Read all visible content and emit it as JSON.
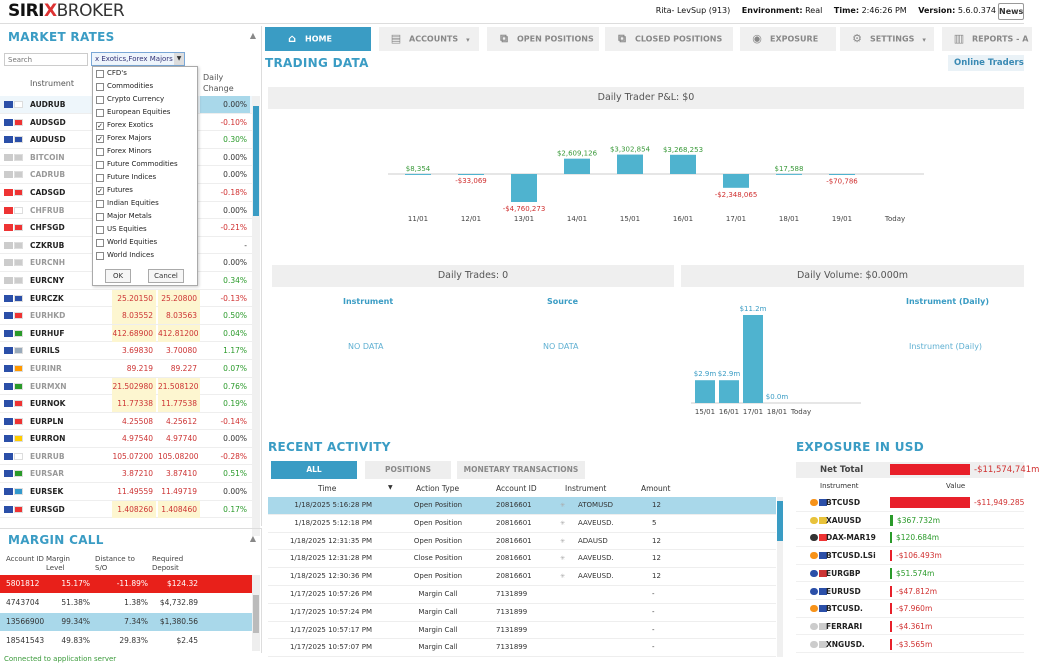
{
  "header": {
    "logo_a": "SIRI",
    "logo_x": "X",
    "logo_b": "BROKER",
    "user": "Rita- LevSup (913)",
    "env_label": "Environment:",
    "env": "Real",
    "time_label": "Time:",
    "time": "2:46:26 PM",
    "version_label": "Version:",
    "version": "5.6.0.374",
    "news": "News"
  },
  "nav": {
    "tabs": [
      {
        "label": "HOME",
        "icon": "home-icon"
      },
      {
        "label": "ACCOUNTS",
        "icon": "accounts-icon"
      },
      {
        "label": "OPEN POSITIONS",
        "icon": "open-positions-icon"
      },
      {
        "label": "CLOSED POSITIONS",
        "icon": "closed-positions-icon"
      },
      {
        "label": "EXPOSURE",
        "icon": "eye-icon"
      },
      {
        "label": "SETTINGS",
        "icon": "gear-icon"
      },
      {
        "label": "REPORTS - A",
        "icon": "reports-icon"
      }
    ]
  },
  "market_rates": {
    "title": "MARKET RATES",
    "search_placeholder": "Search",
    "filter": "x Exotics,Forex Majors",
    "col_instrument": "Instrument",
    "col_change_1": "Daily",
    "col_change_2": "Change",
    "rows": [
      {
        "sym": "AUDRUB",
        "bid": "",
        "ask": "",
        "chg": "0.00%",
        "dir": "nc",
        "hl": false,
        "dim": false,
        "c1": "#2b4fa8",
        "c2": "#fff"
      },
      {
        "sym": "AUDSGD",
        "bid": "",
        "ask": "",
        "chg": "-0.10%",
        "dir": "dn",
        "hl": false,
        "dim": false,
        "c1": "#2b4fa8",
        "c2": "#e33"
      },
      {
        "sym": "AUDUSD",
        "bid": "",
        "ask": "",
        "chg": "0.30%",
        "dir": "up",
        "hl": false,
        "dim": false,
        "c1": "#2b4fa8",
        "c2": "#2b4fa8"
      },
      {
        "sym": "BITCOIN",
        "bid": "",
        "ask": "",
        "chg": "0.00%",
        "dir": "nc",
        "hl": false,
        "dim": true,
        "c1": "#ccc",
        "c2": "#ccc"
      },
      {
        "sym": "CADRUB",
        "bid": "",
        "ask": "",
        "chg": "0.00%",
        "dir": "nc",
        "hl": false,
        "dim": true,
        "c1": "#ccc",
        "c2": "#ccc"
      },
      {
        "sym": "CADSGD",
        "bid": "",
        "ask": "",
        "chg": "-0.18%",
        "dir": "dn",
        "hl": false,
        "dim": false,
        "c1": "#e33",
        "c2": "#e33"
      },
      {
        "sym": "CHFRUB",
        "bid": "",
        "ask": "",
        "chg": "0.00%",
        "dir": "nc",
        "hl": false,
        "dim": true,
        "c1": "#e33",
        "c2": "#fff"
      },
      {
        "sym": "CHFSGD",
        "bid": "",
        "ask": "",
        "chg": "-0.21%",
        "dir": "dn",
        "hl": false,
        "dim": false,
        "c1": "#e33",
        "c2": "#e33"
      },
      {
        "sym": "CZKRUB",
        "bid": "",
        "ask": "",
        "chg": "-",
        "dir": "nc",
        "hl": false,
        "dim": false,
        "c1": "#ccc",
        "c2": "#ccc"
      },
      {
        "sym": "EURCNH",
        "bid": "",
        "ask": "",
        "chg": "0.00%",
        "dir": "nc",
        "hl": false,
        "dim": true,
        "c1": "#ccc",
        "c2": "#ccc"
      },
      {
        "sym": "EURCNY",
        "bid": "",
        "ask": "",
        "chg": "0.34%",
        "dir": "up",
        "hl": false,
        "dim": false,
        "c1": "#ccc",
        "c2": "#ccc"
      },
      {
        "sym": "EURCZK",
        "bid": "25.20150",
        "ask": "25.20800",
        "chg": "-0.13%",
        "dir": "dn",
        "hl": true,
        "dim": false,
        "c1": "#2b4fa8",
        "c2": "#2b4fa8"
      },
      {
        "sym": "EURHKD",
        "bid": "8.03552",
        "ask": "8.03563",
        "chg": "0.50%",
        "dir": "up",
        "hl": true,
        "dim": true,
        "c1": "#2b4fa8",
        "c2": "#e33"
      },
      {
        "sym": "EURHUF",
        "bid": "412.68900",
        "ask": "412.81200",
        "chg": "0.04%",
        "dir": "up",
        "hl": true,
        "dim": false,
        "c1": "#2b4fa8",
        "c2": "#2a9a2a"
      },
      {
        "sym": "EURILS",
        "bid": "3.69830",
        "ask": "3.70080",
        "chg": "1.17%",
        "dir": "up",
        "hl": false,
        "dim": false,
        "c1": "#2b4fa8",
        "c2": "#9ab"
      },
      {
        "sym": "EURINR",
        "bid": "89.219",
        "ask": "89.227",
        "chg": "0.07%",
        "dir": "up",
        "hl": false,
        "dim": true,
        "c1": "#2b4fa8",
        "c2": "#f90"
      },
      {
        "sym": "EURMXN",
        "bid": "21.502980",
        "ask": "21.508120",
        "chg": "0.76%",
        "dir": "up",
        "hl": true,
        "dim": true,
        "c1": "#2b4fa8",
        "c2": "#2a9a2a"
      },
      {
        "sym": "EURNOK",
        "bid": "11.77338",
        "ask": "11.77538",
        "chg": "0.19%",
        "dir": "up",
        "hl": true,
        "dim": false,
        "c1": "#2b4fa8",
        "c2": "#e33"
      },
      {
        "sym": "EURPLN",
        "bid": "4.25508",
        "ask": "4.25612",
        "chg": "-0.14%",
        "dir": "dn",
        "hl": false,
        "dim": false,
        "c1": "#2b4fa8",
        "c2": "#e33"
      },
      {
        "sym": "EURRON",
        "bid": "4.97540",
        "ask": "4.97740",
        "chg": "0.00%",
        "dir": "nc",
        "hl": false,
        "dim": false,
        "c1": "#2b4fa8",
        "c2": "#fc0"
      },
      {
        "sym": "EURRUB",
        "bid": "105.07200",
        "ask": "105.08200",
        "chg": "-0.28%",
        "dir": "dn",
        "hl": false,
        "dim": true,
        "c1": "#2b4fa8",
        "c2": "#fff"
      },
      {
        "sym": "EURSAR",
        "bid": "3.87210",
        "ask": "3.87410",
        "chg": "0.51%",
        "dir": "up",
        "hl": false,
        "dim": true,
        "c1": "#2b4fa8",
        "c2": "#2a9a2a"
      },
      {
        "sym": "EURSEK",
        "bid": "11.49559",
        "ask": "11.49719",
        "chg": "0.00%",
        "dir": "nc",
        "hl": false,
        "dim": false,
        "c1": "#2b4fa8",
        "c2": "#39c"
      },
      {
        "sym": "EURSGD",
        "bid": "1.408260",
        "ask": "1.408460",
        "chg": "0.17%",
        "dir": "up",
        "hl": true,
        "dim": false,
        "c1": "#2b4fa8",
        "c2": "#e33"
      }
    ]
  },
  "dropdown": {
    "items": [
      {
        "label": "CFD's",
        "checked": false
      },
      {
        "label": "Commodities",
        "checked": false
      },
      {
        "label": "Crypto Currency",
        "checked": false
      },
      {
        "label": "European Equities",
        "checked": false
      },
      {
        "label": "Forex Exotics",
        "checked": true
      },
      {
        "label": "Forex Majors",
        "checked": true
      },
      {
        "label": "Forex Minors",
        "checked": false
      },
      {
        "label": "Future Commodities",
        "checked": false
      },
      {
        "label": "Future Indices",
        "checked": false
      },
      {
        "label": "Futures",
        "checked": true
      },
      {
        "label": "Indian Equities",
        "checked": false
      },
      {
        "label": "Major Metals",
        "checked": false
      },
      {
        "label": "US Equities",
        "checked": false
      },
      {
        "label": "World Equities",
        "checked": false
      },
      {
        "label": "World Indices",
        "checked": false
      }
    ],
    "ok": "OK",
    "cancel": "Cancel"
  },
  "margin_call": {
    "title": "MARGIN CALL",
    "h_account": "Account ID",
    "h_margin": "Margin Level",
    "h_distance": "Distance to S/O",
    "h_deposit": "Required Deposit",
    "rows": [
      {
        "id": "5801812",
        "margin": "15.17%",
        "dist": "-11.89%",
        "dep": "$124.32",
        "style": "red"
      },
      {
        "id": "4743704",
        "margin": "51.38%",
        "dist": "1.38%",
        "dep": "$4,732.89",
        "style": ""
      },
      {
        "id": "13566900",
        "margin": "99.34%",
        "dist": "7.34%",
        "dep": "$1,380.56",
        "style": "blue"
      },
      {
        "id": "18541543",
        "margin": "49.83%",
        "dist": "29.83%",
        "dep": "$2.45",
        "style": ""
      }
    ]
  },
  "status": "Connected to application server",
  "trading": {
    "title": "TRADING DATA",
    "online_traders": "Online Traders",
    "pl_title": "Daily Trader P&L: $0",
    "trades_title": "Daily Trades: 0",
    "volume_title": "Daily Volume: $0.000m",
    "col_instrument": "Instrument",
    "col_source": "Source",
    "col_instrument_daily": "Instrument (Daily)",
    "no_data": "NO DATA",
    "no_data2": "NO DATA",
    "instrument_daily_text": "Instrument (Daily)"
  },
  "chart_data": [
    {
      "type": "bar",
      "title": "Daily Trader P&L: $0",
      "categories": [
        "11/01",
        "12/01",
        "13/01",
        "14/01",
        "15/01",
        "16/01",
        "17/01",
        "18/01",
        "19/01",
        "Today"
      ],
      "values": [
        8354,
        -33069,
        -4760273,
        2609126,
        3302854,
        3268253,
        -2348065,
        17588,
        -70786,
        0
      ],
      "labels": [
        "$8,354",
        "-$33,069",
        "-$4,760,273",
        "$2,609,126",
        "$3,302,854",
        "$3,268,253",
        "-$2,348,065",
        "$17,588",
        "-$70,786",
        ""
      ],
      "color": "#4fb3cf"
    },
    {
      "type": "bar",
      "title": "Daily Volume: $0.000m",
      "categories": [
        "15/01",
        "16/01",
        "17/01",
        "18/01",
        "Today"
      ],
      "values": [
        2.9,
        2.9,
        11.2,
        0,
        0
      ],
      "labels": [
        "$2.9m",
        "$2.9m",
        "$11.2m",
        "$0.0m",
        ""
      ],
      "color": "#4fb3cf"
    }
  ],
  "recent": {
    "title": "RECENT ACTIVITY",
    "tabs": [
      "ALL",
      "POSITIONS",
      "MONETARY TRANSACTIONS"
    ],
    "h_time": "Time",
    "h_action": "Action Type",
    "h_account": "Account ID",
    "h_instrument": "Instrument",
    "h_amount": "Amount",
    "rows": [
      {
        "time": "1/18/2025 5:16:28 PM",
        "action": "Open Position",
        "acct": "20816601",
        "inst": "ATOMUSD",
        "amt": "12",
        "sel": true
      },
      {
        "time": "1/18/2025 5:12:18 PM",
        "action": "Open Position",
        "acct": "20816601",
        "inst": "AAVEUSD.",
        "amt": "5",
        "sel": false
      },
      {
        "time": "1/18/2025 12:31:35 PM",
        "action": "Open Position",
        "acct": "20816601",
        "inst": "ADAUSD",
        "amt": "12",
        "sel": false
      },
      {
        "time": "1/18/2025 12:31:28 PM",
        "action": "Close Position",
        "acct": "20816601",
        "inst": "AAVEUSD.",
        "amt": "12",
        "sel": false
      },
      {
        "time": "1/18/2025 12:30:36 PM",
        "action": "Open Position",
        "acct": "20816601",
        "inst": "AAVEUSD.",
        "amt": "12",
        "sel": false
      },
      {
        "time": "1/17/2025 10:57:26 PM",
        "action": "Margin Call",
        "acct": "7131899",
        "inst": "",
        "amt": "-",
        "sel": false
      },
      {
        "time": "1/17/2025 10:57:24 PM",
        "action": "Margin Call",
        "acct": "7131899",
        "inst": "",
        "amt": "-",
        "sel": false
      },
      {
        "time": "1/17/2025 10:57:17 PM",
        "action": "Margin Call",
        "acct": "7131899",
        "inst": "",
        "amt": "-",
        "sel": false
      },
      {
        "time": "1/17/2025 10:57:07 PM",
        "action": "Margin Call",
        "acct": "7131899",
        "inst": "",
        "amt": "-",
        "sel": false
      }
    ]
  },
  "exposure": {
    "title": "EXPOSURE IN USD",
    "net_label": "Net Total",
    "net_value": "-$11,574,741m",
    "h_instrument": "Instrument",
    "h_value": "Value",
    "rows": [
      {
        "sym": "BTCUSD",
        "val": "-$11,949.285",
        "amount": -11949.285,
        "c1": "#f7931a",
        "c2": "#2b4fa8"
      },
      {
        "sym": "XAUUSD",
        "val": "$367.732m",
        "amount": 367.732,
        "c1": "#e8c23a",
        "c2": "#e8c23a"
      },
      {
        "sym": "DAX-MAR19",
        "val": "$120.684m",
        "amount": 120.684,
        "c1": "#333",
        "c2": "#e33"
      },
      {
        "sym": "BTCUSD.LSi",
        "val": "-$106.493m",
        "amount": -106.493,
        "c1": "#f7931a",
        "c2": "#2b4fa8"
      },
      {
        "sym": "EURGBP",
        "val": "$51.574m",
        "amount": 51.574,
        "c1": "#2b4fa8",
        "c2": "#c33"
      },
      {
        "sym": "EURUSD",
        "val": "-$47.812m",
        "amount": -47.812,
        "c1": "#2b4fa8",
        "c2": "#2b4fa8"
      },
      {
        "sym": "BTCUSD.",
        "val": "-$7.960m",
        "amount": -7.96,
        "c1": "#f7931a",
        "c2": "#2b4fa8"
      },
      {
        "sym": "FERRARI",
        "val": "-$4.361m",
        "amount": -4.361,
        "c1": "#ccc",
        "c2": "#ccc"
      },
      {
        "sym": "XNGUSD.",
        "val": "-$3.565m",
        "amount": -3.565,
        "c1": "#ccc",
        "c2": "#ccc"
      }
    ]
  }
}
